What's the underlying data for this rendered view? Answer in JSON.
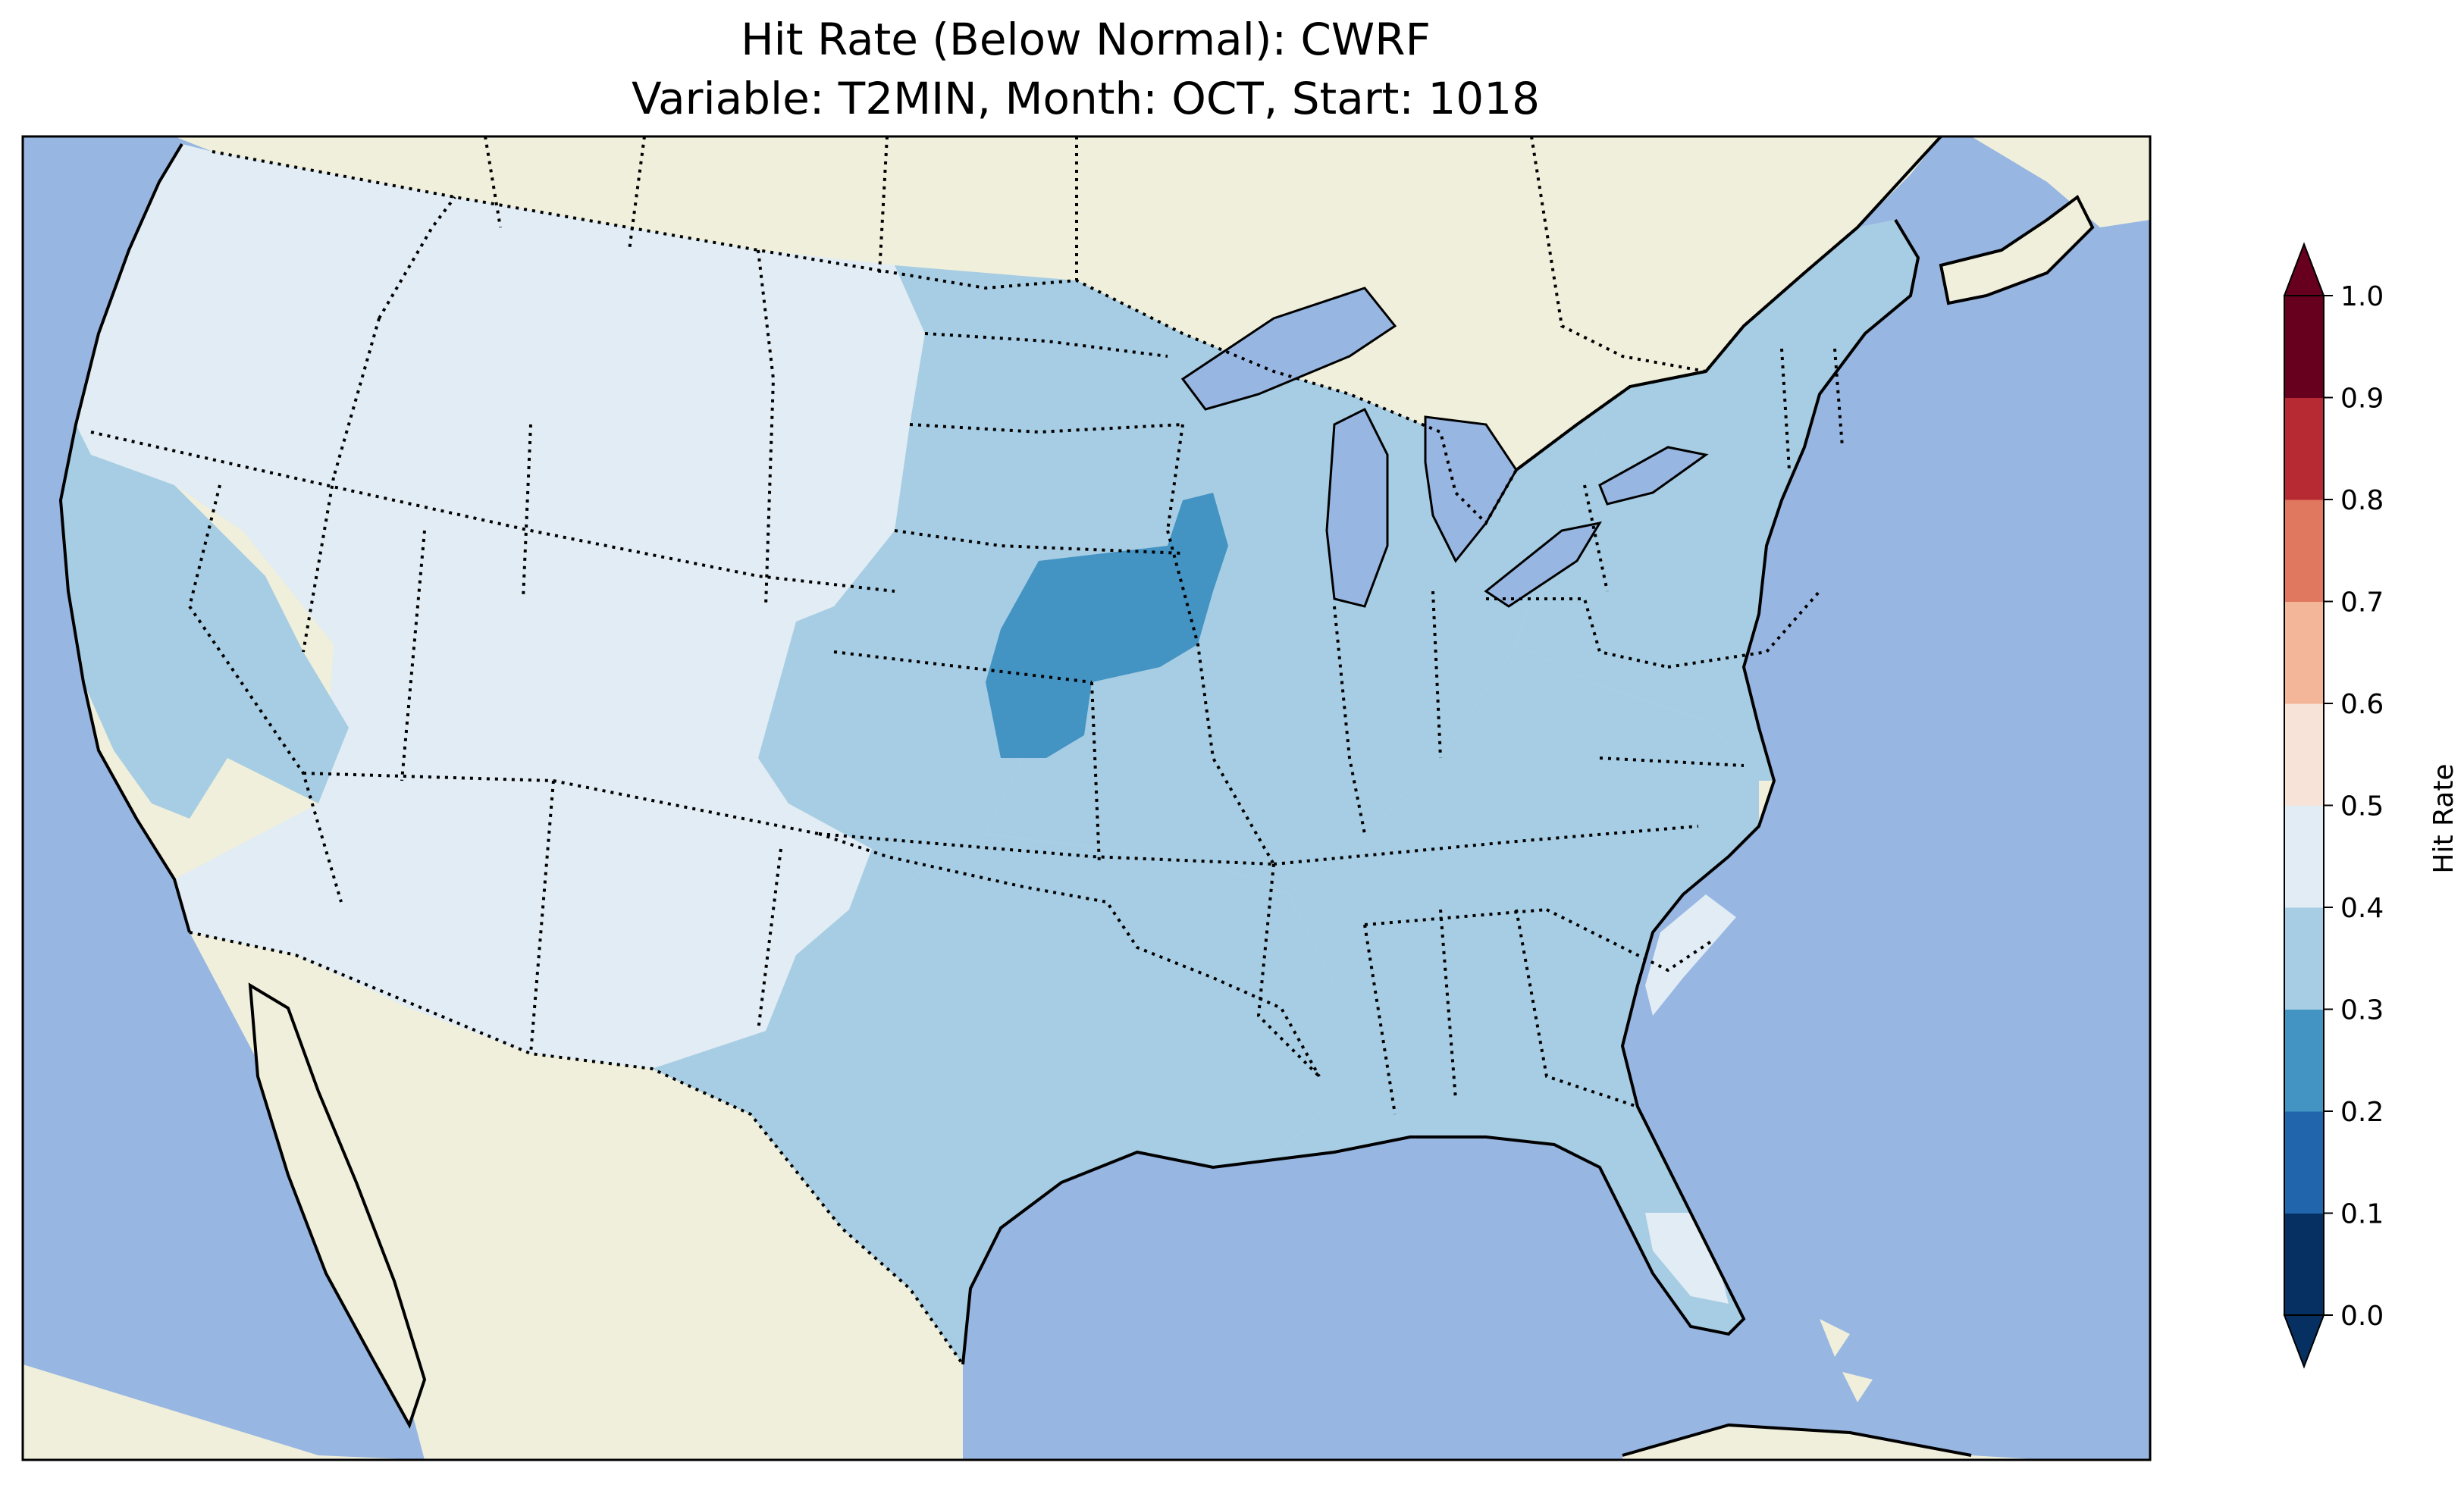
{
  "title": {
    "line1": "Hit Rate (Below Normal): CWRF",
    "line2": "Variable: T2MIN, Month: OCT, Start: 1018"
  },
  "colors": {
    "ocean": "#97b6e1",
    "land": "#efefdb",
    "outline": "#000000"
  },
  "colorbar": {
    "label": "Hit Rate",
    "ticks": [
      "0.0",
      "0.1",
      "0.2",
      "0.3",
      "0.4",
      "0.5",
      "0.6",
      "0.7",
      "0.8",
      "0.9",
      "1.0"
    ],
    "bins": [
      {
        "min": 0.0,
        "max": 0.1,
        "color": "#053061"
      },
      {
        "min": 0.1,
        "max": 0.2,
        "color": "#2166ac"
      },
      {
        "min": 0.2,
        "max": 0.3,
        "color": "#4393c3"
      },
      {
        "min": 0.3,
        "max": 0.4,
        "color": "#a6cde3"
      },
      {
        "min": 0.4,
        "max": 0.5,
        "color": "#e1ecf4"
      },
      {
        "min": 0.5,
        "max": 0.6,
        "color": "#f8e3d8"
      },
      {
        "min": 0.6,
        "max": 0.7,
        "color": "#f4b698"
      },
      {
        "min": 0.7,
        "max": 0.8,
        "color": "#df785e"
      },
      {
        "min": 0.8,
        "max": 0.9,
        "color": "#b82a33"
      },
      {
        "min": 0.9,
        "max": 1.0,
        "color": "#67001f"
      }
    ],
    "under_color": "#053061",
    "over_color": "#67001f"
  },
  "regions": [
    {
      "name": "west-coast-inland",
      "value": 0.45
    },
    {
      "name": "great-basin-rockies",
      "value": 0.45
    },
    {
      "name": "northern-plains-west",
      "value": 0.45
    },
    {
      "name": "california",
      "value": 0.35
    },
    {
      "name": "southwest",
      "value": 0.45
    },
    {
      "name": "central-plains",
      "value": 0.35
    },
    {
      "name": "texas-south",
      "value": 0.35
    },
    {
      "name": "midwest-east",
      "value": 0.35
    },
    {
      "name": "southeast",
      "value": 0.35
    },
    {
      "name": "northeast",
      "value": 0.35
    },
    {
      "name": "missouri-iowa-core",
      "value": 0.25
    },
    {
      "name": "carolinas-coast",
      "value": 0.45
    },
    {
      "name": "south-florida",
      "value": 0.45
    }
  ]
}
